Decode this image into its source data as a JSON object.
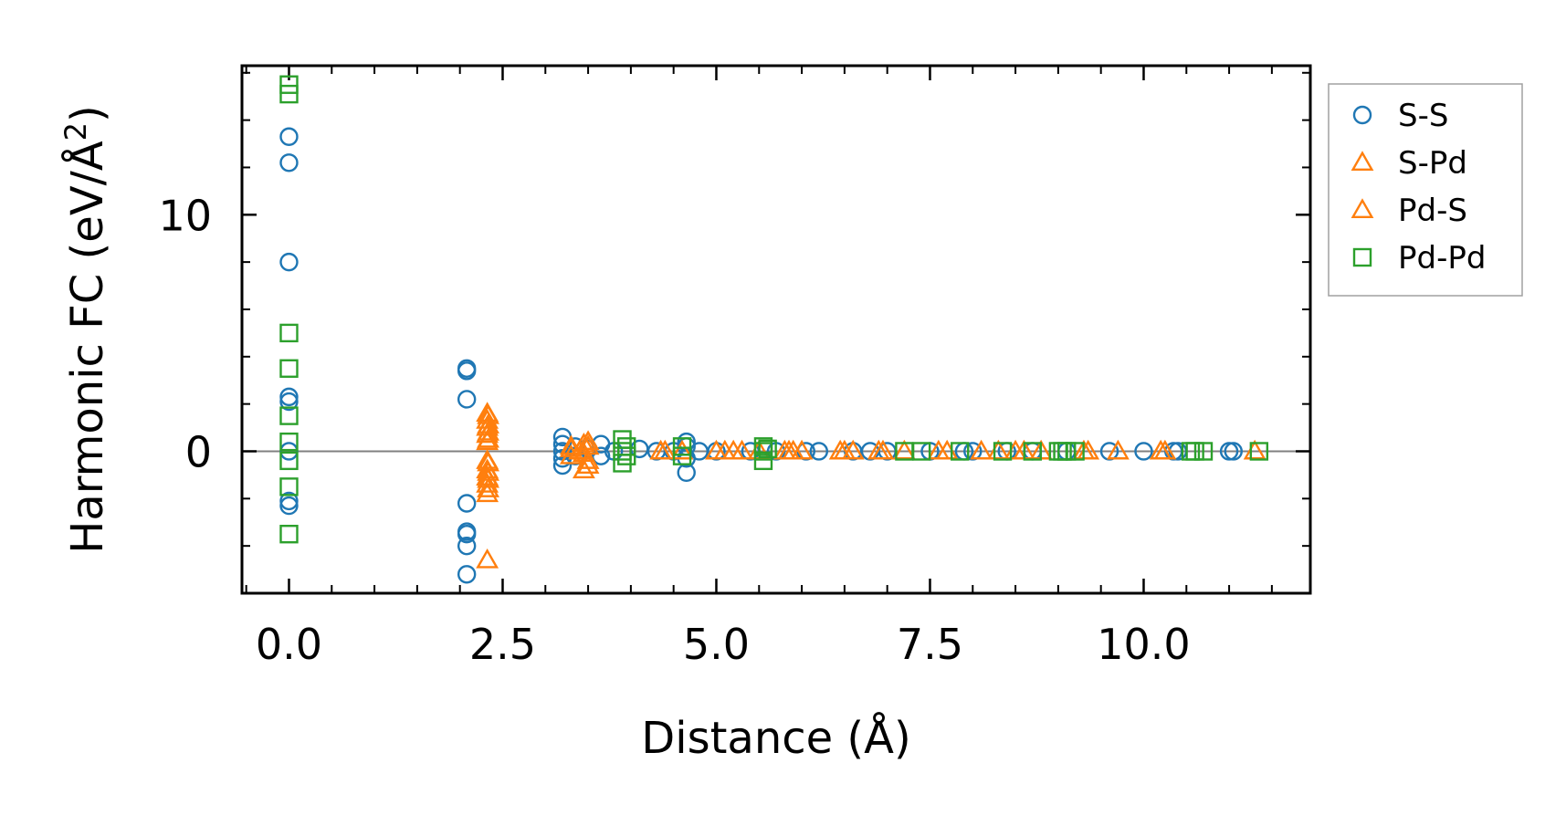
{
  "chart_data": {
    "type": "scatter",
    "xlabel": "Distance (Å)",
    "ylabel_main": "Harmonic FC (eV/Å",
    "ylabel_sup": "2",
    "ylabel_close": ")",
    "xlim": [
      -0.55,
      11.95
    ],
    "ylim": [
      -6.0,
      16.3
    ],
    "xticks": [
      0,
      2.5,
      5,
      7.5,
      10
    ],
    "xtick_labels": [
      "0.0",
      "2.5",
      "5.0",
      "7.5",
      "10.0"
    ],
    "xminor_step": 0.5,
    "yticks": [
      0,
      10
    ],
    "ytick_labels": [
      "0",
      "10"
    ],
    "yminor_step": 2,
    "zero_line": true,
    "legend_position": "outside-right",
    "series": [
      {
        "name": "S-S",
        "marker": "circle",
        "color": "#1f77b4",
        "points": [
          [
            0,
            13.3
          ],
          [
            0,
            12.2
          ],
          [
            0,
            8.0
          ],
          [
            0,
            2.3
          ],
          [
            0,
            2.1
          ],
          [
            0,
            0
          ],
          [
            0,
            -2.1
          ],
          [
            0,
            -2.3
          ],
          [
            2.08,
            3.5
          ],
          [
            2.08,
            3.4
          ],
          [
            2.08,
            2.2
          ],
          [
            2.08,
            -2.2
          ],
          [
            2.08,
            -3.4
          ],
          [
            2.08,
            -3.5
          ],
          [
            2.08,
            -4.0
          ],
          [
            2.08,
            -5.2
          ],
          [
            3.2,
            0.6
          ],
          [
            3.2,
            0.3
          ],
          [
            3.2,
            0.0
          ],
          [
            3.2,
            -0.3
          ],
          [
            3.2,
            -0.6
          ],
          [
            3.35,
            0.2
          ],
          [
            3.35,
            -0.2
          ],
          [
            3.5,
            0.1
          ],
          [
            3.65,
            0.3
          ],
          [
            3.65,
            -0.2
          ],
          [
            3.8,
            0.0
          ],
          [
            4.1,
            0.1
          ],
          [
            4.3,
            0.0
          ],
          [
            4.5,
            0.0
          ],
          [
            4.65,
            0.4
          ],
          [
            4.65,
            0.2
          ],
          [
            4.65,
            -0.3
          ],
          [
            4.65,
            -0.9
          ],
          [
            4.8,
            0.0
          ],
          [
            5.0,
            0.0
          ],
          [
            5.4,
            0.0
          ],
          [
            5.7,
            0.0
          ],
          [
            6.05,
            0.0
          ],
          [
            6.2,
            0.0
          ],
          [
            6.6,
            0.0
          ],
          [
            6.8,
            0.0
          ],
          [
            7.0,
            0.0
          ],
          [
            7.5,
            0.0
          ],
          [
            7.9,
            0.0
          ],
          [
            8.0,
            0.0
          ],
          [
            8.4,
            0.0
          ],
          [
            8.7,
            0.0
          ],
          [
            9.1,
            0.0
          ],
          [
            9.6,
            0.0
          ],
          [
            10.0,
            0.0
          ],
          [
            10.35,
            0.0
          ],
          [
            10.4,
            0.0
          ],
          [
            11.0,
            0.0
          ],
          [
            11.05,
            0.0
          ]
        ]
      },
      {
        "name": "S-Pd",
        "marker": "triangle",
        "color": "#ff7f0e",
        "points": [
          [
            2.32,
            1.6
          ],
          [
            2.32,
            1.3
          ],
          [
            2.32,
            1.0
          ],
          [
            2.32,
            0.7
          ],
          [
            2.32,
            0.4
          ],
          [
            2.32,
            -0.4
          ],
          [
            2.32,
            -0.8
          ],
          [
            2.32,
            -1.1
          ],
          [
            2.32,
            -1.4
          ],
          [
            2.32,
            -1.8
          ],
          [
            2.32,
            -4.6
          ],
          [
            3.3,
            0.2
          ],
          [
            3.3,
            -0.2
          ],
          [
            3.45,
            0.3
          ],
          [
            3.45,
            -0.1
          ],
          [
            3.45,
            -0.8
          ],
          [
            3.5,
            0.4
          ],
          [
            3.5,
            -0.4
          ],
          [
            4.35,
            0.0
          ],
          [
            4.6,
            0.0
          ],
          [
            5.0,
            0.0
          ],
          [
            5.2,
            0.0
          ],
          [
            5.5,
            0.0
          ],
          [
            5.8,
            0.0
          ],
          [
            5.9,
            0.0
          ],
          [
            6.0,
            0.0
          ],
          [
            6.5,
            0.0
          ],
          [
            6.6,
            0.0
          ],
          [
            6.9,
            0.0
          ],
          [
            7.2,
            0.0
          ],
          [
            7.6,
            0.0
          ],
          [
            8.1,
            0.0
          ],
          [
            8.5,
            0.0
          ],
          [
            8.8,
            0.0
          ],
          [
            9.3,
            0.0
          ],
          [
            9.7,
            0.0
          ],
          [
            10.2,
            0.0
          ],
          [
            11.3,
            0.0
          ]
        ]
      },
      {
        "name": "Pd-S",
        "marker": "triangle",
        "color": "#ff7f0e",
        "points": [
          [
            2.33,
            1.5
          ],
          [
            2.33,
            1.1
          ],
          [
            2.33,
            0.8
          ],
          [
            2.33,
            0.5
          ],
          [
            2.33,
            -0.5
          ],
          [
            2.33,
            -0.9
          ],
          [
            2.33,
            -1.2
          ],
          [
            2.33,
            -1.6
          ],
          [
            3.3,
            0.1
          ],
          [
            3.4,
            0.0
          ],
          [
            3.5,
            0.2
          ],
          [
            3.5,
            -0.6
          ],
          [
            4.4,
            0.0
          ],
          [
            5.1,
            0.0
          ],
          [
            5.3,
            0.0
          ],
          [
            5.85,
            0.0
          ],
          [
            6.45,
            0.0
          ],
          [
            6.95,
            0.0
          ],
          [
            7.7,
            0.0
          ],
          [
            8.3,
            0.0
          ],
          [
            8.6,
            0.0
          ],
          [
            9.35,
            0.0
          ],
          [
            10.25,
            0.0
          ]
        ]
      },
      {
        "name": "Pd-Pd",
        "marker": "square",
        "color": "#2ca02c",
        "points": [
          [
            0,
            15.5
          ],
          [
            0,
            15.1
          ],
          [
            0,
            5.0
          ],
          [
            0,
            3.5
          ],
          [
            0,
            1.5
          ],
          [
            0,
            0.4
          ],
          [
            0,
            -0.4
          ],
          [
            0,
            -1.5
          ],
          [
            0,
            -3.5
          ],
          [
            3.9,
            0.5
          ],
          [
            3.9,
            0.0
          ],
          [
            3.9,
            -0.5
          ],
          [
            3.95,
            0.2
          ],
          [
            3.95,
            -0.2
          ],
          [
            4.6,
            0.2
          ],
          [
            4.6,
            -0.2
          ],
          [
            5.55,
            0.2
          ],
          [
            5.55,
            0.0
          ],
          [
            5.55,
            -0.4
          ],
          [
            5.6,
            0.1
          ],
          [
            7.2,
            0.0
          ],
          [
            7.4,
            0.0
          ],
          [
            7.85,
            0.0
          ],
          [
            8.35,
            0.0
          ],
          [
            8.7,
            0.0
          ],
          [
            9.0,
            0.0
          ],
          [
            9.05,
            0.0
          ],
          [
            9.1,
            0.0
          ],
          [
            9.2,
            0.0
          ],
          [
            10.55,
            0.0
          ],
          [
            10.6,
            0.0
          ],
          [
            10.7,
            0.0
          ],
          [
            11.35,
            0.0
          ]
        ]
      }
    ]
  }
}
